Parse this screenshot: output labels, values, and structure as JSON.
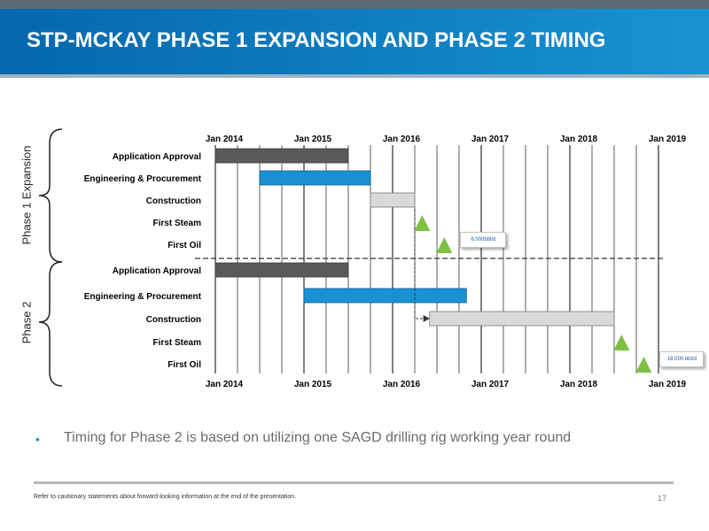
{
  "header": {
    "title": "STP-MCKAY PHASE 1 EXPANSION AND PHASE 2 TIMING"
  },
  "bullet": {
    "text": "Timing for Phase 2 is based on utilizing one SAGD drilling rig working year round"
  },
  "footer": {
    "disclaimer": "Refer to cautionary statements about forward-looking information at the end of the presentation.",
    "page": "17"
  },
  "colors": {
    "header": "#0f7fc1",
    "dark_bar": "#595959",
    "blue_bar": "#1a92d2",
    "light_bar": "#d9d9d9",
    "milestone": "#7cc142"
  },
  "chart_data": {
    "type": "gantt",
    "title": "",
    "time_axis": {
      "range": [
        "Jan 2014",
        "Jan 2019"
      ],
      "top_labels": [
        "Jan 2014",
        "Jan 2015",
        "Jan 2016",
        "Jan 2017",
        "Jan 2018",
        "Jan 2019"
      ],
      "bottom_labels": [
        "Jan 2014",
        "Jan 2015",
        "Jan 2016",
        "Jan 2017",
        "Jan 2018",
        "Jan 2019"
      ],
      "gridlines": "quarterly"
    },
    "phases": [
      {
        "name": "Phase 1 Expansion",
        "tasks": [
          {
            "label": "Application Approval",
            "type": "bar",
            "start": "2014-01",
            "end": "2015-07",
            "style": "dark"
          },
          {
            "label": "Engineering & Procurement",
            "type": "bar",
            "start": "2014-07",
            "end": "2015-10",
            "style": "blue"
          },
          {
            "label": "Construction",
            "type": "bar",
            "start": "2015-10",
            "end": "2016-04",
            "style": "light"
          },
          {
            "label": "First Steam",
            "type": "milestone",
            "date": "2016-05"
          },
          {
            "label": "First Oil",
            "type": "milestone",
            "date": "2016-08",
            "annotation": "6,000bbl/d"
          }
        ]
      },
      {
        "name": "Phase 2",
        "tasks": [
          {
            "label": "Application Approval",
            "type": "bar",
            "start": "2014-01",
            "end": "2015-07",
            "style": "dark"
          },
          {
            "label": "Engineering & Procurement",
            "type": "bar",
            "start": "2015-01",
            "end": "2016-11",
            "style": "blue"
          },
          {
            "label": "Construction",
            "type": "bar",
            "start": "2016-06",
            "end": "2018-07",
            "style": "light"
          },
          {
            "label": "First Steam",
            "type": "milestone",
            "date": "2018-08"
          },
          {
            "label": "First Oil",
            "type": "milestone",
            "date": "2018-11",
            "annotation": "18,000 bbl/d"
          }
        ]
      }
    ]
  }
}
